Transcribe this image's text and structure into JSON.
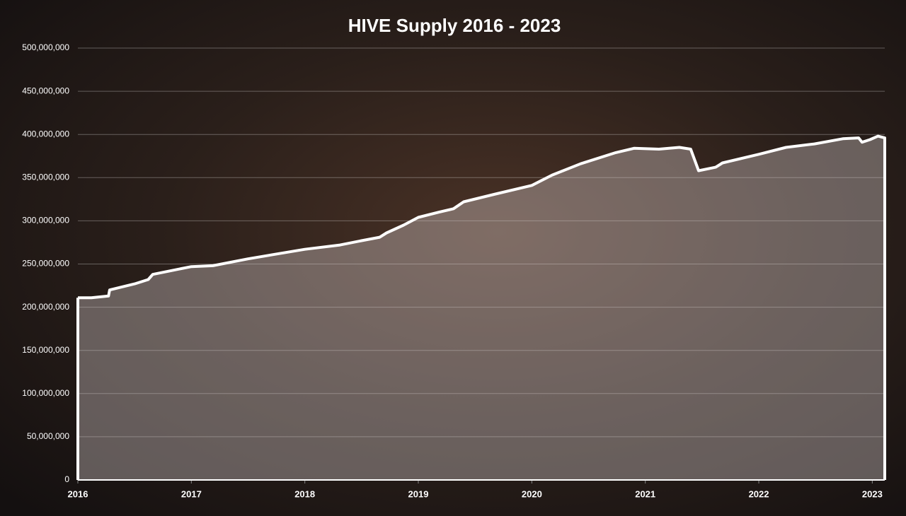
{
  "chart_data": {
    "type": "area",
    "title": "HIVE Supply  2016 - 2023",
    "x": [
      2016.0,
      2016.12,
      2016.27,
      2016.28,
      2016.5,
      2016.62,
      2016.66,
      2016.81,
      2017.0,
      2017.19,
      2017.5,
      2017.68,
      2018.0,
      2018.31,
      2018.5,
      2018.66,
      2018.72,
      2018.87,
      2019.0,
      2019.18,
      2019.31,
      2019.4,
      2019.68,
      2020.0,
      2020.18,
      2020.43,
      2020.74,
      2020.9,
      2021.12,
      2021.3,
      2021.4,
      2021.47,
      2021.62,
      2021.68,
      2022.0,
      2022.24,
      2022.49,
      2022.74,
      2022.88,
      2022.91,
      2022.98,
      2023.05,
      2023.11
    ],
    "series": [
      {
        "name": "HIVE Supply",
        "color": "#ffffff",
        "values": [
          211000000,
          211000000,
          213000000,
          220000000,
          227000000,
          232000000,
          238000000,
          242000000,
          247000000,
          248000000,
          256000000,
          260000000,
          267000000,
          272000000,
          277000000,
          281000000,
          286000000,
          295000000,
          304000000,
          310000000,
          314000000,
          322000000,
          331000000,
          341000000,
          353000000,
          366000000,
          379000000,
          384000000,
          383000000,
          385000000,
          383000000,
          358000000,
          362000000,
          367000000,
          377000000,
          385000000,
          389000000,
          395000000,
          396000000,
          391000000,
          394000000,
          398000000,
          396000000
        ]
      }
    ],
    "xlim": [
      2016,
      2023.11
    ],
    "xticks": [
      2016,
      2017,
      2018,
      2019,
      2020,
      2021,
      2022,
      2023
    ],
    "ylim": [
      0,
      500000000
    ],
    "yticks": [
      0,
      {
        "value": 50000000,
        "label": "50,000,000"
      },
      {
        "value": 100000000,
        "label": "100,000,000"
      },
      {
        "value": 150000000,
        "label": "150,000,000"
      },
      {
        "value": 200000000,
        "label": "200,000,000"
      },
      {
        "value": 250000000,
        "label": "250,000,000"
      },
      {
        "value": 300000000,
        "label": "300,000,000"
      },
      {
        "value": 350000000,
        "label": "350,000,000"
      },
      {
        "value": 400000000,
        "label": "400,000,000"
      },
      {
        "value": 450000000,
        "label": "450,000,000"
      },
      {
        "value": 500000000,
        "label": "500,000,000"
      }
    ],
    "grid": true
  }
}
